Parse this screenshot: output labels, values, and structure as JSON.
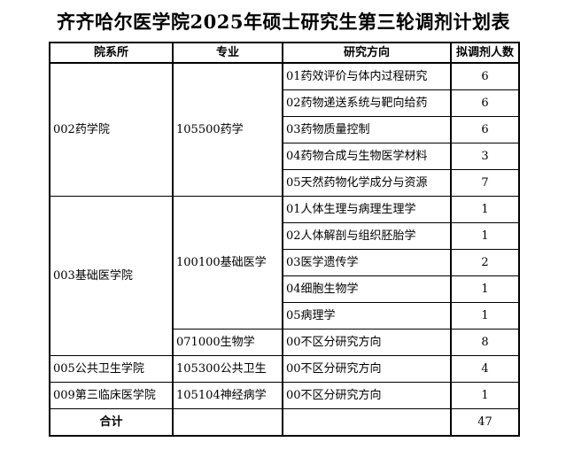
{
  "title": "齐齐哈尔医学院2025年硕士研究生第三轮调剂计划表",
  "table": {
    "headers": [
      "院系所",
      "专业",
      "研究方向",
      "拟调剂人数"
    ],
    "groups": [
      {
        "college": "002药学院",
        "majors": [
          {
            "name": "105500药学",
            "directions": [
              {
                "name": "01药效评价与体内过程研究",
                "count": "6"
              },
              {
                "name": "02药物递送系统与靶向给药",
                "count": "6"
              },
              {
                "name": "03药物质量控制",
                "count": "6"
              },
              {
                "name": "04药物合成与生物医学材料",
                "count": "3"
              },
              {
                "name": "05天然药物化学成分与资源",
                "count": "7"
              }
            ]
          }
        ]
      },
      {
        "college": "003基础医学院",
        "majors": [
          {
            "name": "100100基础医学",
            "directions": [
              {
                "name": "01人体生理与病理生理学",
                "count": "1"
              },
              {
                "name": "02人体解剖与组织胚胎学",
                "count": "1"
              },
              {
                "name": "03医学遗传学",
                "count": "2"
              },
              {
                "name": "04细胞生物学",
                "count": "1"
              },
              {
                "name": "05病理学",
                "count": "1"
              }
            ]
          },
          {
            "name": "071000生物学",
            "directions": [
              {
                "name": "00不区分研究方向",
                "count": "8"
              }
            ]
          }
        ]
      },
      {
        "college": "005公共卫生学院",
        "majors": [
          {
            "name": "105300公共卫生",
            "directions": [
              {
                "name": "00不区分研究方向",
                "count": "4"
              }
            ]
          }
        ]
      },
      {
        "college": "009第三临床医学院",
        "majors": [
          {
            "name": "105104神经病学",
            "directions": [
              {
                "name": "00不区分研究方向",
                "count": "1"
              }
            ]
          }
        ]
      }
    ],
    "total": {
      "label": "合计",
      "count": "47"
    }
  }
}
